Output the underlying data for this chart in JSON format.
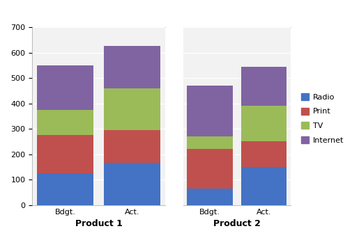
{
  "groups": [
    "Product 1",
    "Product 2"
  ],
  "bars": [
    "Bdgt.",
    "Act."
  ],
  "series": [
    "Radio",
    "Print",
    "TV",
    "Internet"
  ],
  "colors": [
    "#4472C4",
    "#C0504D",
    "#9BBB59",
    "#8064A2"
  ],
  "values": {
    "Product 1": {
      "Bdgt.": [
        125,
        150,
        100,
        175
      ],
      "Act.": [
        165,
        130,
        165,
        165
      ]
    },
    "Product 2": {
      "Bdgt.": [
        65,
        155,
        50,
        200
      ],
      "Act.": [
        150,
        100,
        140,
        155
      ]
    }
  },
  "ylim": [
    0,
    700
  ],
  "yticks": [
    0,
    100,
    200,
    300,
    400,
    500,
    600,
    700
  ],
  "bg_color": "#FFFFFF",
  "plot_bg": "#F2F2F2",
  "group_label_fontsize": 9,
  "tick_fontsize": 8,
  "bar_width": 0.85,
  "spine_color": "#BFBFBF",
  "grid_color": "#FFFFFF",
  "legend_fontsize": 8
}
